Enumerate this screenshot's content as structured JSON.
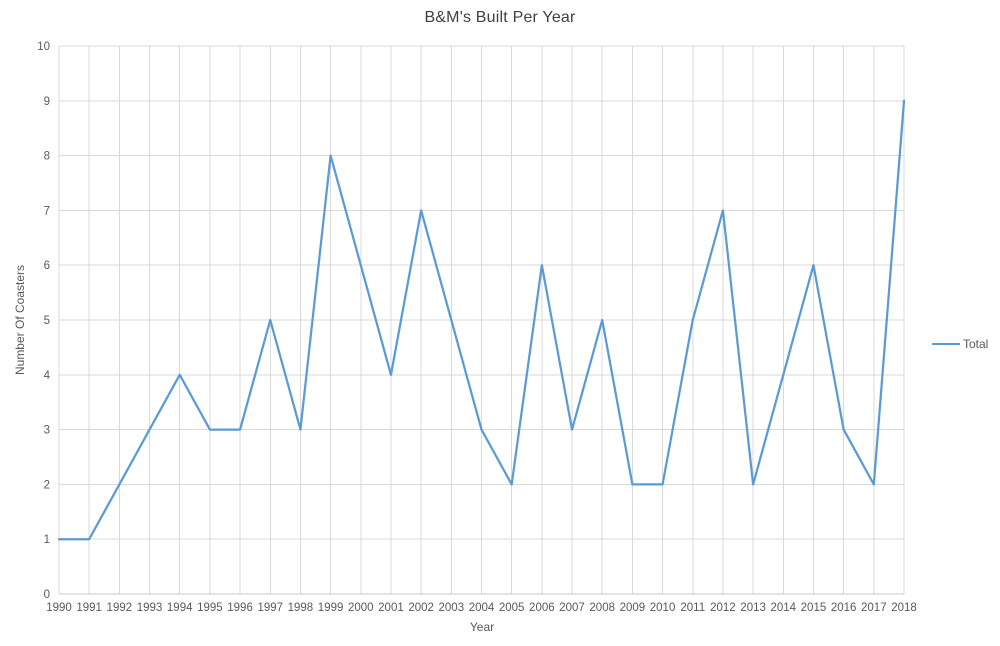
{
  "colors": {
    "line": "#5B9BD5",
    "grid": "#D9D9D9",
    "axis_line": "#C9C9C9",
    "tick_text": "#595959",
    "title_text": "#404040",
    "background": "#FFFFFF"
  },
  "legend": {
    "label": "Total",
    "position": "right"
  },
  "chart_data": {
    "type": "line",
    "title": "B&M's Built Per Year",
    "xlabel": "Year",
    "ylabel": "Number Of Coasters",
    "categories": [
      "1990",
      "1991",
      "1992",
      "1993",
      "1994",
      "1995",
      "1996",
      "1997",
      "1998",
      "1999",
      "2000",
      "2001",
      "2002",
      "2003",
      "2004",
      "2005",
      "2006",
      "2007",
      "2008",
      "2009",
      "2010",
      "2011",
      "2012",
      "2013",
      "2014",
      "2015",
      "2016",
      "2017",
      "2018"
    ],
    "series": [
      {
        "name": "Total",
        "values": [
          1,
          1,
          2,
          3,
          4,
          3,
          3,
          5,
          3,
          8,
          6,
          4,
          7,
          5,
          3,
          2,
          6,
          3,
          5,
          2,
          2,
          5,
          7,
          2,
          4,
          6,
          3,
          2,
          9
        ]
      }
    ],
    "ylim": [
      0,
      10
    ],
    "ytick_step": 1,
    "grid": true,
    "legend_position": "right"
  }
}
